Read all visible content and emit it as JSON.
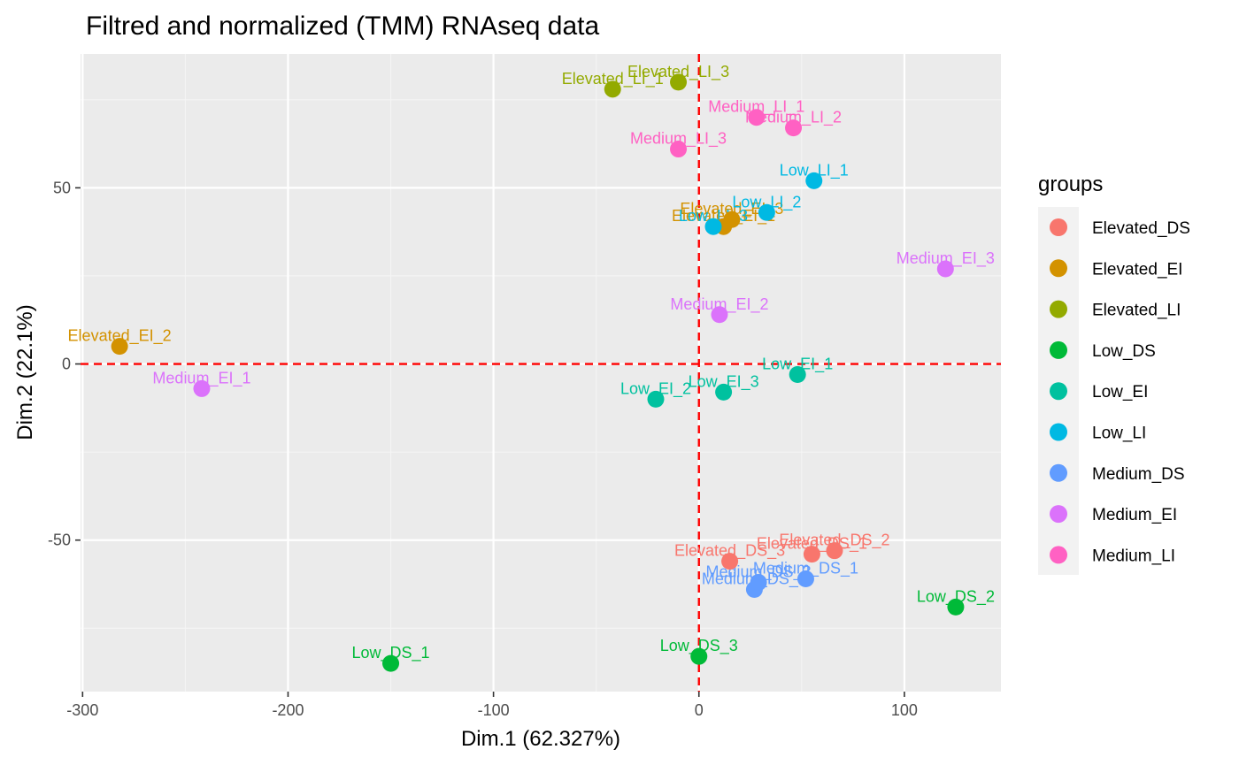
{
  "chart_data": {
    "type": "scatter",
    "title": "Filtred and normalized (TMM) RNAseq data",
    "xlabel": "Dim.1 (62.327%)",
    "ylabel": "Dim.2 (22.1%)",
    "xlim": [
      -301,
      147
    ],
    "ylim": [
      -93,
      88
    ],
    "xticks": [
      -300,
      -200,
      -100,
      0,
      100
    ],
    "xtick_labels": [
      "-300",
      "-200",
      "-100",
      "0",
      "100"
    ],
    "yticks": [
      -50,
      0,
      50
    ],
    "ytick_labels": [
      "-50",
      "0",
      "50"
    ],
    "reference_lines": {
      "x": 0,
      "y": 0,
      "color": "#ff0000",
      "style": "dashed"
    },
    "grid": true,
    "legend": {
      "title": "groups",
      "position": "right",
      "entries": [
        {
          "name": "Elevated_DS",
          "color": "#F8766D"
        },
        {
          "name": "Elevated_EI",
          "color": "#D39200"
        },
        {
          "name": "Elevated_LI",
          "color": "#93AA00"
        },
        {
          "name": "Low_DS",
          "color": "#00BA38"
        },
        {
          "name": "Low_EI",
          "color": "#00C19F"
        },
        {
          "name": "Low_LI",
          "color": "#00B9E3"
        },
        {
          "name": "Medium_DS",
          "color": "#619CFF"
        },
        {
          "name": "Medium_EI",
          "color": "#DB72FB"
        },
        {
          "name": "Medium_LI",
          "color": "#FF61C3"
        }
      ]
    },
    "points": [
      {
        "label": "Elevated_DS_1",
        "group": "Elevated_DS",
        "x": 55,
        "y": -54
      },
      {
        "label": "Elevated_DS_2",
        "group": "Elevated_DS",
        "x": 66,
        "y": -53
      },
      {
        "label": "Elevated_DS_3",
        "group": "Elevated_DS",
        "x": 15,
        "y": -56
      },
      {
        "label": "Elevated_EI_1",
        "group": "Elevated_EI",
        "x": 12,
        "y": 39
      },
      {
        "label": "Elevated_EI_2",
        "group": "Elevated_EI",
        "x": -282,
        "y": 5
      },
      {
        "label": "Elevated_EI_3",
        "group": "Elevated_EI",
        "x": 16,
        "y": 41
      },
      {
        "label": "Elevated_LI_1",
        "group": "Elevated_LI",
        "x": -42,
        "y": 78
      },
      {
        "label": "Elevated_LI_3",
        "group": "Elevated_LI",
        "x": -10,
        "y": 80
      },
      {
        "label": "Low_DS_1",
        "group": "Low_DS",
        "x": -150,
        "y": -85
      },
      {
        "label": "Low_DS_2",
        "group": "Low_DS",
        "x": 125,
        "y": -69
      },
      {
        "label": "Low_DS_3",
        "group": "Low_DS",
        "x": 0,
        "y": -83
      },
      {
        "label": "Low_EI_1",
        "group": "Low_EI",
        "x": 48,
        "y": -3
      },
      {
        "label": "Low_EI_2",
        "group": "Low_EI",
        "x": -21,
        "y": -10
      },
      {
        "label": "Low_EI_3",
        "group": "Low_EI",
        "x": 12,
        "y": -8
      },
      {
        "label": "Low_LI_1",
        "group": "Low_LI",
        "x": 56,
        "y": 52
      },
      {
        "label": "Low_LI_2",
        "group": "Low_LI",
        "x": 33,
        "y": 43
      },
      {
        "label": "Low_LI_3",
        "group": "Low_LI",
        "x": 7,
        "y": 39
      },
      {
        "label": "Medium_DS_1",
        "group": "Medium_DS",
        "x": 52,
        "y": -61
      },
      {
        "label": "Medium_DS_2",
        "group": "Medium_DS",
        "x": 27,
        "y": -64
      },
      {
        "label": "Medium_DS_3",
        "group": "Medium_DS",
        "x": 29,
        "y": -62
      },
      {
        "label": "Medium_EI_1",
        "group": "Medium_EI",
        "x": -242,
        "y": -7
      },
      {
        "label": "Medium_EI_2",
        "group": "Medium_EI",
        "x": 10,
        "y": 14
      },
      {
        "label": "Medium_EI_3",
        "group": "Medium_EI",
        "x": 120,
        "y": 27
      },
      {
        "label": "Medium_LI_1",
        "group": "Medium_LI",
        "x": 28,
        "y": 70
      },
      {
        "label": "Medium_LI_2",
        "group": "Medium_LI",
        "x": 46,
        "y": 67
      },
      {
        "label": "Medium_LI_3",
        "group": "Medium_LI",
        "x": -10,
        "y": 61
      }
    ]
  }
}
